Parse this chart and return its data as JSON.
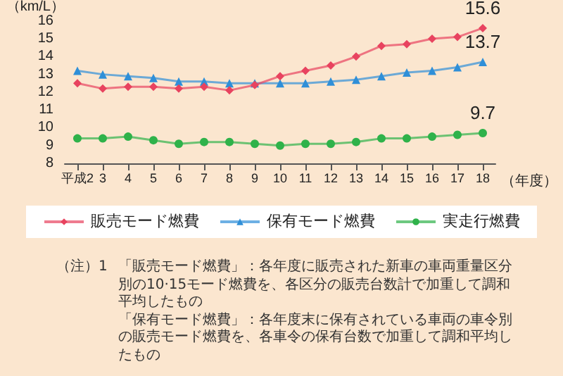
{
  "chart_data": {
    "type": "line",
    "xlabel": "（年度）",
    "ylabel": "（km/L）",
    "categories": [
      "平成2",
      "3",
      "4",
      "5",
      "6",
      "7",
      "8",
      "9",
      "10",
      "11",
      "12",
      "13",
      "14",
      "15",
      "16",
      "17",
      "18"
    ],
    "series": [
      {
        "name": "販売モード燃費",
        "color": "#e8435f",
        "marker": "diamond",
        "values": [
          12.5,
          12.2,
          12.3,
          12.3,
          12.2,
          12.3,
          12.1,
          12.4,
          12.9,
          13.2,
          13.5,
          14.0,
          14.6,
          14.7,
          15.0,
          15.1,
          15.6
        ],
        "value_labels": [
          null,
          null,
          null,
          null,
          null,
          null,
          null,
          null,
          null,
          null,
          null,
          null,
          null,
          null,
          null,
          null,
          "15.6"
        ]
      },
      {
        "name": "保有モード燃費",
        "color": "#2f8fd8",
        "marker": "triangle",
        "values": [
          13.2,
          13.0,
          12.9,
          12.8,
          12.6,
          12.6,
          12.5,
          12.5,
          12.5,
          12.5,
          12.6,
          12.7,
          12.9,
          13.1,
          13.2,
          13.4,
          13.7
        ],
        "value_labels": [
          null,
          null,
          null,
          null,
          null,
          null,
          null,
          null,
          null,
          null,
          null,
          null,
          null,
          null,
          null,
          null,
          "13.7"
        ]
      },
      {
        "name": "実走行燃費",
        "color": "#2fb24a",
        "marker": "circle",
        "values": [
          9.4,
          9.4,
          9.5,
          9.3,
          9.1,
          9.2,
          9.2,
          9.1,
          9.0,
          9.1,
          9.1,
          9.2,
          9.4,
          9.4,
          9.5,
          9.6,
          9.7
        ],
        "value_labels": [
          null,
          null,
          null,
          null,
          null,
          null,
          null,
          null,
          null,
          null,
          null,
          null,
          null,
          null,
          null,
          null,
          "9.7"
        ]
      }
    ],
    "ylim": [
      8,
      16
    ],
    "yticks": [
      8,
      9,
      10,
      11,
      12,
      13,
      14,
      15,
      16
    ],
    "grid": false,
    "legend": "bottom",
    "line_style": "solid",
    "annotations": [
      "（注）1",
      "「販売モード燃費」：各年度に販売された新車の車両重量区分別の10·15モード燃費を、各区分の販売台数計で加重して調和平均したもの",
      "「保有モード燃費」：各年度末に保有されている車両の車令別の販売モード燃費を、各車令の保有台数で加重して調和平均したもの"
    ]
  }
}
